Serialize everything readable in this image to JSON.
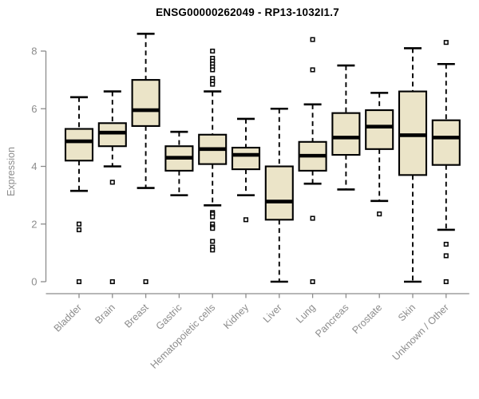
{
  "chart_data": {
    "type": "boxplot",
    "title": "ENSG00000262049 - RP13-1032I1.7",
    "ylabel": "Expression",
    "xlabel": "",
    "ylim": [
      0,
      8
    ],
    "yticks": [
      0,
      2,
      4,
      6,
      8
    ],
    "grid": false,
    "legend": "none",
    "colors": {
      "box_fill": "#EBE4C8",
      "box_stroke": "#000000",
      "median": "#000000",
      "whisker": "#000000",
      "outlier_fill": "#FFFFFF",
      "outlier_stroke": "#000000",
      "axis": "#8C8C8C",
      "tick_label": "#8C8C8C",
      "title": "#000000"
    },
    "categories": [
      "Bladder",
      "Brain",
      "Breast",
      "Gastric",
      "Hematopoietic cells",
      "Kidney",
      "Liver",
      "Lung",
      "Pancreas",
      "Prostate",
      "Skin",
      "Unknown / Other"
    ],
    "boxes": [
      {
        "category": "Bladder",
        "whisker_low": 3.15,
        "q1": 4.2,
        "median": 4.87,
        "q3": 5.3,
        "whisker_high": 6.4,
        "outliers": [
          2.0,
          1.8,
          0
        ]
      },
      {
        "category": "Brain",
        "whisker_low": 4.0,
        "q1": 4.7,
        "median": 5.17,
        "q3": 5.5,
        "whisker_high": 6.6,
        "outliers": [
          3.45,
          0
        ]
      },
      {
        "category": "Breast",
        "whisker_low": 3.25,
        "q1": 5.4,
        "median": 5.95,
        "q3": 7.0,
        "whisker_high": 8.6,
        "outliers": [
          0
        ]
      },
      {
        "category": "Gastric",
        "whisker_low": 3.0,
        "q1": 3.85,
        "median": 4.3,
        "q3": 4.7,
        "whisker_high": 5.2,
        "outliers": []
      },
      {
        "category": "Hematopoietic cells",
        "whisker_low": 2.65,
        "q1": 4.08,
        "median": 4.6,
        "q3": 5.1,
        "whisker_high": 6.6,
        "outliers": [
          8.0,
          7.75,
          7.65,
          7.55,
          7.45,
          7.35,
          7.05,
          6.95,
          6.85,
          2.4,
          2.35,
          2.25,
          2.0,
          1.9,
          1.85,
          1.4,
          1.2,
          1.1
        ]
      },
      {
        "category": "Kidney",
        "whisker_low": 3.0,
        "q1": 3.9,
        "median": 4.4,
        "q3": 4.65,
        "whisker_high": 5.65,
        "outliers": [
          2.15
        ]
      },
      {
        "category": "Liver",
        "whisker_low": 0.0,
        "q1": 2.15,
        "median": 2.78,
        "q3": 4.0,
        "whisker_high": 6.0,
        "outliers": []
      },
      {
        "category": "Lung",
        "whisker_low": 3.4,
        "q1": 3.85,
        "median": 4.37,
        "q3": 4.85,
        "whisker_high": 6.15,
        "outliers": [
          8.4,
          7.35,
          2.2,
          0
        ]
      },
      {
        "category": "Pancreas",
        "whisker_low": 3.2,
        "q1": 4.4,
        "median": 5.0,
        "q3": 5.85,
        "whisker_high": 7.5,
        "outliers": []
      },
      {
        "category": "Prostate",
        "whisker_low": 2.8,
        "q1": 4.6,
        "median": 5.38,
        "q3": 5.95,
        "whisker_high": 6.55,
        "outliers": [
          2.35
        ]
      },
      {
        "category": "Skin",
        "whisker_low": 0.0,
        "q1": 3.7,
        "median": 5.08,
        "q3": 6.6,
        "whisker_high": 8.1,
        "outliers": []
      },
      {
        "category": "Unknown / Other",
        "whisker_low": 1.8,
        "q1": 4.05,
        "median": 5.0,
        "q3": 5.6,
        "whisker_high": 7.55,
        "outliers": [
          8.3,
          1.3,
          0.9,
          0
        ]
      }
    ]
  }
}
